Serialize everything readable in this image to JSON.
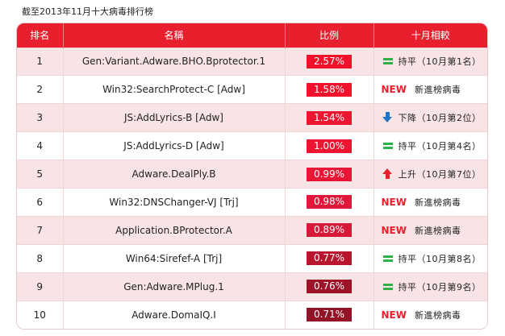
{
  "caption": "截至2013年11月十大病毒排行榜",
  "headers": {
    "rank": "排名",
    "name": "名稱",
    "ratio": "比例",
    "compare": "十月相較"
  },
  "colors": {
    "header_bg": "#e8202e",
    "odd_row_bg": "#f9e4e5",
    "bar_shades": [
      "#f0112b",
      "#f0112b",
      "#ee1530",
      "#ec1632",
      "#e81634",
      "#e2163a",
      "#d81a3a",
      "#b8162e",
      "#9e1328",
      "#921226"
    ],
    "equal_icon": "#2db24a",
    "down_icon": "#1e74c8",
    "up_icon": "#e8202e",
    "new_text": "#e8202e"
  },
  "rows": [
    {
      "rank": "1",
      "name": "Gen:Variant.Adware.BHO.Bprotector.1",
      "ratio": "2.57%",
      "change_type": "equal",
      "change_icon": "equal-icon",
      "change_text": "持平（10月第1名）"
    },
    {
      "rank": "2",
      "name": "Win32:SearchProtect-C [Adw]",
      "ratio": "1.58%",
      "change_type": "new",
      "change_icon": "",
      "new_label": "NEW",
      "change_text": "新進榜病毒"
    },
    {
      "rank": "3",
      "name": "JS:AddLyrics-B [Adw]",
      "ratio": "1.54%",
      "change_type": "down",
      "change_icon": "down-arrow-icon",
      "change_text": "下降（10月第2位）"
    },
    {
      "rank": "4",
      "name": "JS:AddLyrics-D [Adw]",
      "ratio": "1.00%",
      "change_type": "equal",
      "change_icon": "equal-icon",
      "change_text": "持平（10月第4名）"
    },
    {
      "rank": "5",
      "name": "Adware.DealPly.B",
      "ratio": "0.99%",
      "change_type": "up",
      "change_icon": "up-arrow-icon",
      "change_text": "上升（10月第7位）"
    },
    {
      "rank": "6",
      "name": "Win32:DNSChanger-VJ [Trj]",
      "ratio": "0.98%",
      "change_type": "new",
      "change_icon": "",
      "new_label": "NEW",
      "change_text": "新進榜病毒"
    },
    {
      "rank": "7",
      "name": "Application.BProtector.A",
      "ratio": "0.89%",
      "change_type": "new",
      "change_icon": "",
      "new_label": "NEW",
      "change_text": "新進榜病毒"
    },
    {
      "rank": "8",
      "name": "Win64:Sirefef-A [Trj]",
      "ratio": "0.77%",
      "change_type": "equal",
      "change_icon": "equal-icon",
      "change_text": "持平（10月第8名）"
    },
    {
      "rank": "9",
      "name": "Gen:Adware.MPlug.1",
      "ratio": "0.76%",
      "change_type": "equal",
      "change_icon": "equal-icon",
      "change_text": "持平（10月第9名）"
    },
    {
      "rank": "10",
      "name": "Adware.DomaIQ.I",
      "ratio": "0.71%",
      "change_type": "new",
      "change_icon": "",
      "new_label": "NEW",
      "change_text": "新進榜病毒"
    }
  ]
}
